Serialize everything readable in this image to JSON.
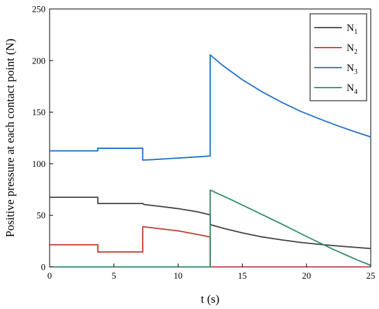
{
  "chart_data": {
    "type": "line",
    "title": "",
    "xlabel": "t (s)",
    "ylabel": "Positive pressure at each contact point (N)",
    "xlim": [
      0,
      25
    ],
    "ylim": [
      0,
      250
    ],
    "x_ticks": [
      "0",
      "5",
      "10",
      "15",
      "20",
      "25"
    ],
    "y_ticks": [
      "0",
      "50",
      "100",
      "150",
      "200",
      "250"
    ],
    "grid": false,
    "legend_position": "top-right",
    "series": [
      {
        "name": "N1",
        "label_main": "N",
        "label_sub": "1",
        "color": "#404040",
        "points": [
          [
            0,
            67.5
          ],
          [
            3.75,
            67.5
          ],
          [
            3.75,
            61.5
          ],
          [
            7.25,
            61.5
          ],
          [
            7.35,
            60.5
          ],
          [
            8.5,
            58.8
          ],
          [
            10,
            56.5
          ],
          [
            11.5,
            53.5
          ],
          [
            12.5,
            50.5
          ],
          [
            12.5,
            41
          ],
          [
            13.5,
            37.5
          ],
          [
            15,
            33
          ],
          [
            16.5,
            29.2
          ],
          [
            18,
            26.3
          ],
          [
            19.5,
            23.8
          ],
          [
            21,
            21.9
          ],
          [
            22.5,
            20.2
          ],
          [
            24,
            18.8
          ],
          [
            25,
            17.8
          ]
        ]
      },
      {
        "name": "N2",
        "label_main": "N",
        "label_sub": "2",
        "color": "#c0392b",
        "points": [
          [
            0,
            21.5
          ],
          [
            3.75,
            21.5
          ],
          [
            3.75,
            14.5
          ],
          [
            7.25,
            14.5
          ],
          [
            7.25,
            39
          ],
          [
            8.5,
            37.2
          ],
          [
            10,
            35
          ],
          [
            11.5,
            31.5
          ],
          [
            12.5,
            29
          ],
          [
            12.5,
            0
          ],
          [
            25,
            0
          ]
        ]
      },
      {
        "name": "N3",
        "label_main": "N",
        "label_sub": "3",
        "color": "#1f6fc5",
        "points": [
          [
            0,
            112.5
          ],
          [
            3.75,
            112.5
          ],
          [
            3.75,
            115
          ],
          [
            7.25,
            115
          ],
          [
            7.25,
            103.5
          ],
          [
            8,
            104
          ],
          [
            10,
            105.5
          ],
          [
            12.5,
            107.5
          ],
          [
            12.5,
            205.5
          ],
          [
            13.5,
            195
          ],
          [
            15,
            181.5
          ],
          [
            16.5,
            170
          ],
          [
            18,
            160
          ],
          [
            19.5,
            151
          ],
          [
            21,
            143.5
          ],
          [
            22.5,
            136.5
          ],
          [
            24,
            130
          ],
          [
            25,
            126
          ]
        ]
      },
      {
        "name": "N4",
        "label_main": "N",
        "label_sub": "4",
        "color": "#2e8b64",
        "points": [
          [
            0,
            0
          ],
          [
            12.5,
            0
          ],
          [
            12.5,
            74.5
          ],
          [
            14,
            66
          ],
          [
            16,
            54
          ],
          [
            18,
            42
          ],
          [
            20,
            29.5
          ],
          [
            22,
            17.5
          ],
          [
            24,
            6.5
          ],
          [
            25,
            1.5
          ]
        ]
      }
    ]
  }
}
